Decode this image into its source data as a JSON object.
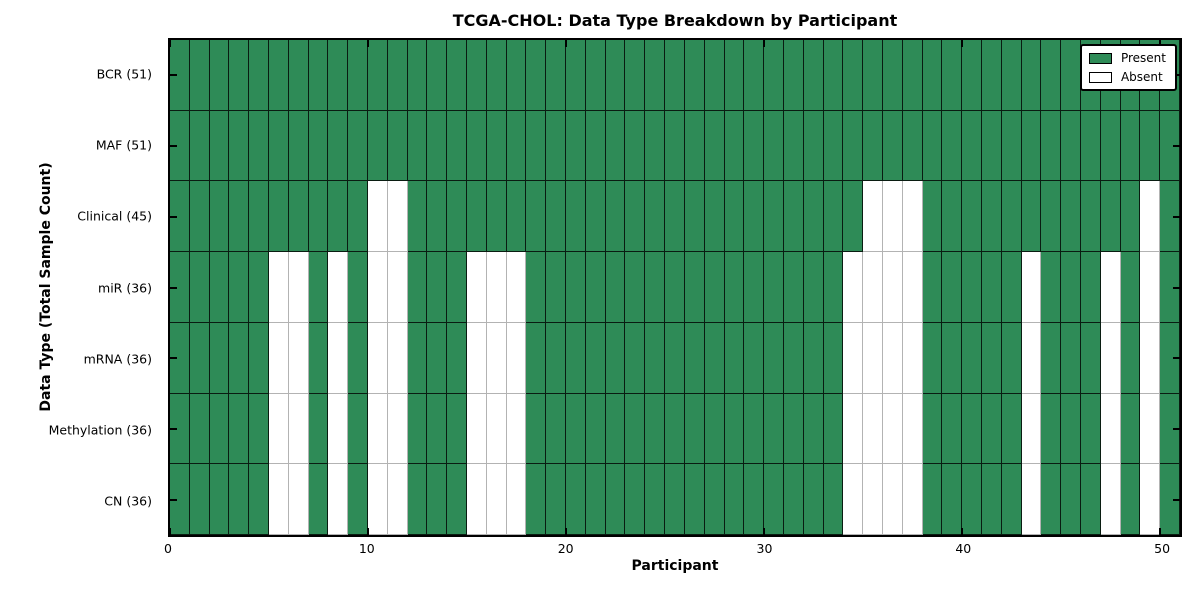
{
  "chart_data": {
    "type": "heatmap",
    "title": "TCGA-CHOL: Data Type Breakdown by Participant",
    "xlabel": "Participant",
    "ylabel": "Data Type (Total Sample Count)",
    "n_participants": 51,
    "x_ticks": [
      0,
      10,
      20,
      30,
      40,
      50
    ],
    "grid": "cell-borders",
    "legend_position": "upper-right",
    "legend": [
      {
        "label": "Present",
        "color": "#2e8b57"
      },
      {
        "label": "Absent",
        "color": "#ffffff"
      }
    ],
    "colors": {
      "present": "#2e8b57",
      "absent": "#ffffff",
      "present_edge": "#000000",
      "absent_edge": "#b3b3b3"
    },
    "rows": [
      {
        "data_type": "BCR",
        "label": "BCR (51)",
        "present_count": 51,
        "absent_participants": []
      },
      {
        "data_type": "MAF",
        "label": "MAF (51)",
        "present_count": 51,
        "absent_participants": []
      },
      {
        "data_type": "Clinical",
        "label": "Clinical (45)",
        "present_count": 45,
        "absent_participants": [
          10,
          11,
          35,
          36,
          37,
          49
        ]
      },
      {
        "data_type": "miR",
        "label": "miR (36)",
        "present_count": 36,
        "absent_participants": [
          5,
          6,
          8,
          10,
          11,
          15,
          16,
          17,
          34,
          35,
          36,
          37,
          43,
          47,
          49
        ]
      },
      {
        "data_type": "mRNA",
        "label": "mRNA (36)",
        "present_count": 36,
        "absent_participants": [
          5,
          6,
          8,
          10,
          11,
          15,
          16,
          17,
          34,
          35,
          36,
          37,
          43,
          47,
          49
        ]
      },
      {
        "data_type": "Methylation",
        "label": "Methylation (36)",
        "present_count": 36,
        "absent_participants": [
          5,
          6,
          8,
          10,
          11,
          15,
          16,
          17,
          34,
          35,
          36,
          37,
          43,
          47,
          49
        ]
      },
      {
        "data_type": "CN",
        "label": "CN (36)",
        "present_count": 36,
        "absent_participants": [
          5,
          6,
          8,
          10,
          11,
          15,
          16,
          17,
          34,
          35,
          36,
          37,
          43,
          47,
          49
        ]
      }
    ]
  }
}
